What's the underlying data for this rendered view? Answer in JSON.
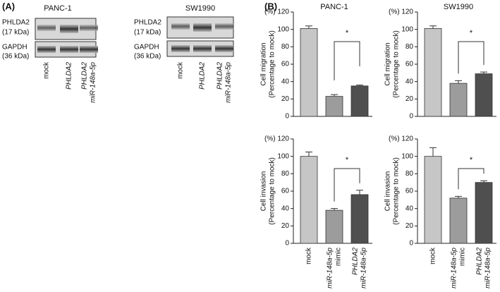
{
  "panel_a": {
    "label": "(A)",
    "blots": [
      {
        "title": "PANC-1",
        "target": "PHLDA2",
        "target_size": "(17 kDa)",
        "control": "GAPDH",
        "control_size": "(36 kDa)",
        "lanes": [
          [
            "mock"
          ],
          [
            "PHLDA2"
          ],
          [
            "PHLDA2",
            "miR-148a-5p"
          ]
        ]
      },
      {
        "title": "SW1990",
        "target": "PHLDA2",
        "target_size": "(17 kDa)",
        "control": "GAPDH",
        "control_size": "(36 kDa)",
        "lanes": [
          [
            "mock"
          ],
          [
            "PHLDA2"
          ],
          [
            "PHLDA2",
            "miR-148a-5p"
          ]
        ]
      }
    ]
  },
  "panel_b": {
    "label": "(B)"
  },
  "chart_data": [
    {
      "type": "bar",
      "title": "PANC-1",
      "unit_label": "(%)",
      "ylabel": "Cell migration",
      "ylabel2": "(Percentage to mock)",
      "categories": [
        null,
        null,
        null
      ],
      "values": [
        101,
        23,
        35
      ],
      "errors": [
        3,
        2,
        1
      ],
      "colors": [
        "#c6c6c6",
        "#9c9c9c",
        "#4f4f4f"
      ],
      "ylim": [
        0,
        120
      ],
      "yticks": [
        0,
        20,
        40,
        60,
        80,
        100,
        120
      ],
      "annotation": "*"
    },
    {
      "type": "bar",
      "title": "SW1990",
      "unit_label": "(%)",
      "ylabel": "Cell migration",
      "ylabel2": "(Percentage to mock)",
      "categories": [
        null,
        null,
        null
      ],
      "values": [
        101,
        38,
        49
      ],
      "errors": [
        3,
        3,
        2
      ],
      "colors": [
        "#c6c6c6",
        "#9c9c9c",
        "#4f4f4f"
      ],
      "ylim": [
        0,
        120
      ],
      "yticks": [
        0,
        20,
        40,
        60,
        80,
        100,
        120
      ],
      "annotation": "*"
    },
    {
      "type": "bar",
      "unit_label": "(%)",
      "ylabel": "Cell invasion",
      "ylabel2": "(Percentage to mock)",
      "categories": [
        [
          "mock"
        ],
        [
          "miR-148a-5p",
          "mimic"
        ],
        [
          "PHLDA2",
          "miR-148a-5p"
        ]
      ],
      "values": [
        100,
        38,
        56
      ],
      "errors": [
        5,
        2,
        5
      ],
      "colors": [
        "#c6c6c6",
        "#9c9c9c",
        "#4f4f4f"
      ],
      "ylim": [
        0,
        120
      ],
      "yticks": [
        0,
        20,
        40,
        60,
        80,
        100,
        120
      ],
      "annotation": "*"
    },
    {
      "type": "bar",
      "unit_label": "(%)",
      "ylabel": "Cell invasion",
      "ylabel2": "(Percentage to mock)",
      "categories": [
        [
          "mock"
        ],
        [
          "miR-148a-5p",
          "mimic"
        ],
        [
          "PHLDA2",
          "miR-148a-5p"
        ]
      ],
      "values": [
        100,
        52,
        70
      ],
      "errors": [
        10,
        2,
        2
      ],
      "colors": [
        "#c6c6c6",
        "#9c9c9c",
        "#4f4f4f"
      ],
      "ylim": [
        0,
        120
      ],
      "yticks": [
        0,
        20,
        40,
        60,
        80,
        100,
        120
      ],
      "annotation": "*"
    }
  ]
}
